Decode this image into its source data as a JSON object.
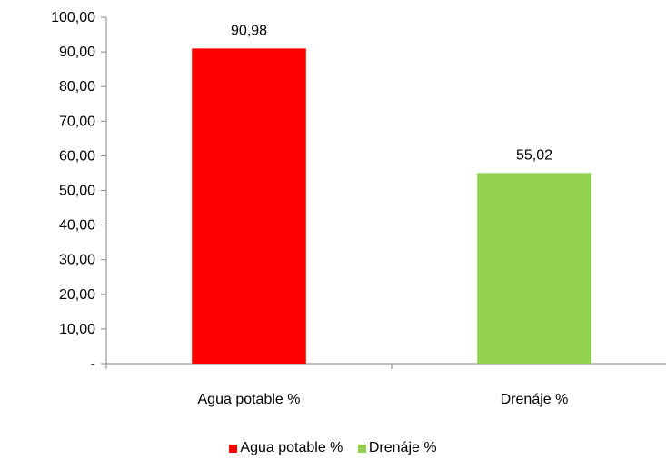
{
  "chart_data": {
    "type": "bar",
    "categories": [
      "Agua potable %",
      "Drenáje %"
    ],
    "values": [
      90.98,
      55.02
    ],
    "value_labels": [
      "90,98",
      "55,02"
    ],
    "colors": [
      "#ff0000",
      "#92d050"
    ],
    "ylim": [
      0,
      100
    ],
    "yticks": [
      0,
      10,
      20,
      30,
      40,
      50,
      60,
      70,
      80,
      90,
      100
    ],
    "ytick_labels": [
      "-",
      "10,00",
      "20,00",
      "30,00",
      "40,00",
      "50,00",
      "60,00",
      "70,00",
      "80,00",
      "90,00",
      "100,00"
    ],
    "legend": {
      "position": "bottom",
      "entries": [
        "Agua potable %",
        "Drenáje %"
      ]
    },
    "grid": false
  }
}
